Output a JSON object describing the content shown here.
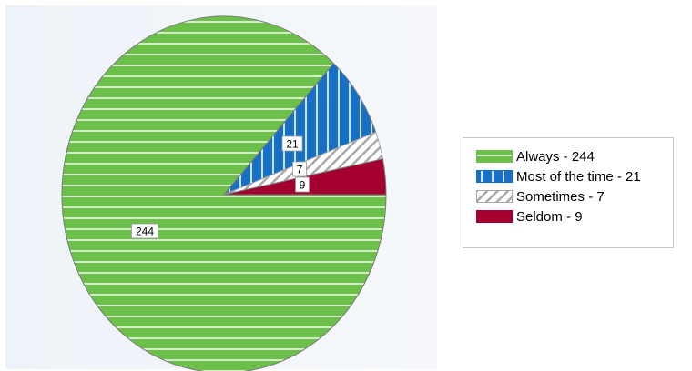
{
  "chart_data": {
    "type": "pie",
    "slices": [
      {
        "label": "Always",
        "value": 244,
        "color": "#6cc04a",
        "pattern": "horizontal-lines"
      },
      {
        "label": "Most of the time",
        "value": 21,
        "color": "#1770c7",
        "pattern": "vertical-lines"
      },
      {
        "label": "Sometimes",
        "value": 7,
        "color": "#a9a9a9",
        "pattern": "diagonal-lines"
      },
      {
        "label": "Seldom",
        "value": 9,
        "color": "#a3002f",
        "pattern": "solid"
      }
    ],
    "data_labels": [
      "244",
      "21",
      "7",
      "9"
    ],
    "legend": {
      "placement": "right",
      "items": [
        "Always - 244",
        "Most of the time - 21",
        "Sometimes - 7",
        "Seldom - 9"
      ]
    }
  }
}
